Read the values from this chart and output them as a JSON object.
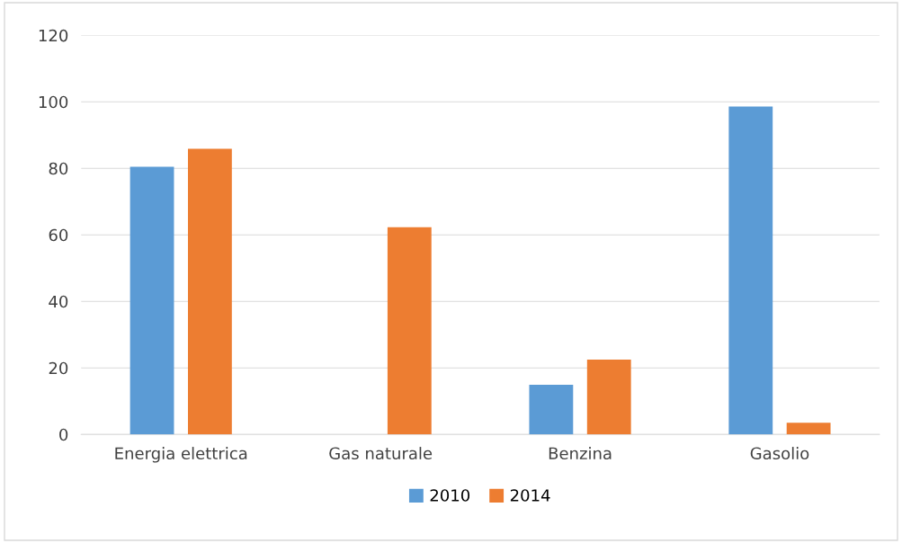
{
  "chart_data": {
    "type": "bar",
    "categories": [
      "Energia elettrica",
      "Gas naturale",
      "Benzina",
      "Gasolio"
    ],
    "series": [
      {
        "name": "2010",
        "color": "#5b9bd5",
        "values": [
          80.5,
          0,
          14.9,
          98.6
        ]
      },
      {
        "name": "2014",
        "color": "#ed7d31",
        "values": [
          85.9,
          62.3,
          22.5,
          3.5
        ]
      }
    ],
    "ylim": [
      0,
      120
    ],
    "yticks": [
      0,
      20,
      40,
      60,
      80,
      100,
      120
    ],
    "grid": "y",
    "legend": "bottom"
  }
}
